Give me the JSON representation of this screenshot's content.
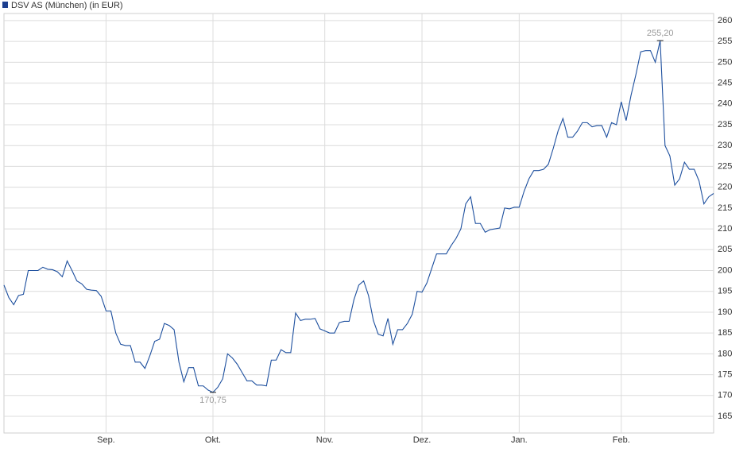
{
  "chart_data": {
    "type": "line",
    "series": [
      {
        "name": "DSV AS (München) (in EUR)",
        "color": "#1d4f9e",
        "values": [
          196.5,
          193.5,
          191.8,
          194,
          194.3,
          200,
          200,
          200,
          200.8,
          200.3,
          200.2,
          199.7,
          198.5,
          202.3,
          200,
          197.5,
          196.8,
          195.5,
          195.3,
          195.2,
          193.8,
          190.3,
          190.3,
          185,
          182.3,
          182,
          182,
          178,
          178,
          176.5,
          179.5,
          183,
          183.5,
          187.3,
          186.8,
          185.8,
          178,
          173.3,
          176.7,
          176.7,
          172.3,
          172.3,
          171.3,
          170.75,
          172,
          174,
          180,
          179,
          177.5,
          175.5,
          173.5,
          173.5,
          172.5,
          172.5,
          172.3,
          178.5,
          178.5,
          181,
          180.3,
          180.3,
          189.8,
          188,
          188.3,
          188.3,
          188.5,
          186,
          185.5,
          185,
          185,
          187.5,
          187.8,
          187.8,
          193,
          196.5,
          197.5,
          194,
          188,
          184.7,
          184.3,
          188.5,
          182.3,
          185.8,
          185.8,
          187.3,
          189.5,
          195,
          194.8,
          197,
          200.5,
          204,
          204,
          204,
          206,
          207.7,
          210,
          216,
          217.7,
          211.3,
          211.3,
          209.2,
          209.8,
          210,
          210.2,
          215,
          214.8,
          215.2,
          215.2,
          219,
          222,
          224,
          224,
          224.3,
          225.5,
          229.3,
          233.5,
          236.5,
          232,
          232,
          233.5,
          235.5,
          235.5,
          234.5,
          234.8,
          234.8,
          232,
          235.5,
          235,
          240.5,
          236,
          242,
          247,
          252.5,
          252.8,
          252.8,
          250,
          255.2,
          230,
          227.5,
          220.5,
          222,
          226,
          224.3,
          224.3,
          221.5,
          216,
          217.7,
          218.5
        ],
        "value_labels": [
          null,
          null,
          null,
          null,
          null,
          null,
          null,
          null,
          null,
          null,
          null,
          null,
          null,
          null,
          null,
          null,
          null,
          null,
          null,
          null,
          null,
          null,
          null,
          null,
          null,
          null,
          null,
          null,
          null,
          null,
          null,
          null,
          null,
          null,
          null,
          null,
          null,
          null,
          null,
          null,
          null,
          null,
          null,
          "170,75",
          null,
          null,
          null,
          null,
          null,
          null,
          null,
          null,
          null,
          null,
          null,
          null,
          null,
          null,
          null,
          null,
          null,
          null,
          null,
          null,
          null,
          null,
          null,
          null,
          null,
          null,
          null,
          null,
          null,
          null,
          null,
          null,
          null,
          null,
          null,
          null,
          null,
          null,
          null,
          null,
          null,
          null,
          null,
          null,
          null,
          null,
          null,
          null,
          null,
          null,
          null,
          null,
          null,
          null,
          null,
          null,
          null,
          null,
          null,
          null,
          null,
          null,
          null,
          null,
          null,
          null,
          null,
          null,
          null,
          null,
          null,
          null,
          null,
          null,
          null,
          null,
          null,
          null,
          null,
          null,
          null,
          null,
          null,
          null,
          null,
          null,
          null,
          null,
          null,
          null,
          null,
          "255,20",
          null,
          null,
          null,
          null,
          null,
          null,
          null,
          null,
          null,
          null,
          null
        ]
      }
    ],
    "categories": [
      null,
      null,
      null,
      null,
      null,
      null,
      null,
      null,
      null,
      null,
      null,
      null,
      null,
      null,
      null,
      null,
      null,
      null,
      null,
      null,
      null,
      "Sep.",
      null,
      null,
      null,
      null,
      null,
      null,
      null,
      null,
      null,
      null,
      null,
      null,
      null,
      null,
      null,
      null,
      null,
      null,
      null,
      null,
      null,
      "Okt.",
      null,
      null,
      null,
      null,
      null,
      null,
      null,
      null,
      null,
      null,
      null,
      null,
      null,
      null,
      null,
      null,
      null,
      null,
      null,
      null,
      null,
      null,
      "Nov.",
      null,
      null,
      null,
      null,
      null,
      null,
      null,
      null,
      null,
      null,
      null,
      null,
      null,
      null,
      null,
      null,
      null,
      null,
      null,
      "Dez.",
      null,
      null,
      null,
      null,
      null,
      null,
      null,
      null,
      null,
      null,
      null,
      null,
      null,
      null,
      null,
      null,
      null,
      null,
      null,
      "Jan.",
      null,
      null,
      null,
      null,
      null,
      null,
      null,
      null,
      null,
      null,
      null,
      null,
      null,
      null,
      null,
      null,
      null,
      null,
      null,
      null,
      "Feb.",
      null,
      null,
      null,
      null,
      null,
      null,
      null,
      null,
      null,
      null,
      null,
      null,
      null,
      null,
      null,
      null,
      null,
      null,
      null
    ],
    "ylim": [
      161,
      261.7
    ],
    "yticks": [
      165,
      170,
      175,
      180,
      185,
      190,
      195,
      200,
      205,
      210,
      215,
      220,
      225,
      230,
      235,
      240,
      245,
      250,
      255,
      260
    ],
    "grid": true
  }
}
